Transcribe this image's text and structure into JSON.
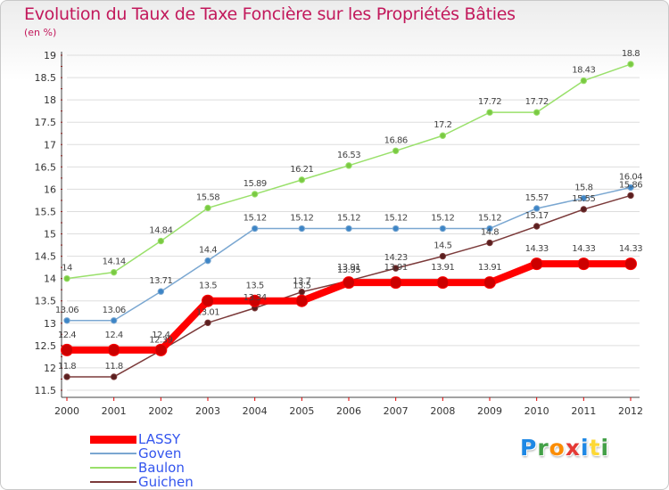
{
  "header": {
    "title": "Evolution du Taux de Taxe Foncière sur les Propriétés Bâties",
    "unit": "(en %)"
  },
  "colors": {
    "title": "#c2185b",
    "axis": "#444444",
    "grid": "#dddddd",
    "tick_marks": "#e00000"
  },
  "logo": {
    "text": "Proxiti",
    "letter_colors": [
      "#1e88e5",
      "#43a047",
      "#fb8c00",
      "#e53935",
      "#1e88e5",
      "#fdd835",
      "#43a047"
    ]
  },
  "chart_data": {
    "type": "line",
    "x": [
      "2000",
      "2001",
      "2002",
      "2003",
      "2004",
      "2005",
      "2006",
      "2007",
      "2008",
      "2009",
      "2010",
      "2011",
      "2012"
    ],
    "ylim": [
      11.5,
      19
    ],
    "yticks": [
      "11.5",
      "12",
      "12.5",
      "13",
      "13.5",
      "14",
      "14.5",
      "15",
      "15.5",
      "16",
      "16.5",
      "17",
      "17.5",
      "18",
      "18.5",
      "19"
    ],
    "grid": "horizontal",
    "legend": "bottom-left",
    "series": [
      {
        "name": "LASSY",
        "color": "#ff0000",
        "marker": "#cc0000",
        "width": 8,
        "radius": 6.5,
        "legend_text": "#3355ee",
        "values": [
          12.4,
          12.4,
          12.4,
          13.5,
          13.5,
          13.5,
          13.91,
          13.91,
          13.91,
          13.91,
          14.33,
          14.33,
          14.33
        ],
        "labels": [
          "12.4",
          "12.4",
          "12.4",
          "13.5",
          "13.5",
          "13.5",
          "13.91",
          "13.91",
          "13.91",
          "13.91",
          "14.33",
          "14.33",
          "14.33"
        ]
      },
      {
        "name": "Goven",
        "color": "#7aa7d1",
        "marker": "#3d85c6",
        "width": 1.5,
        "radius": 3.2,
        "legend_text": "#3355ee",
        "values": [
          13.06,
          13.06,
          13.71,
          14.4,
          15.12,
          15.12,
          15.12,
          15.12,
          15.12,
          15.12,
          15.57,
          15.8,
          16.04
        ],
        "labels": [
          "13.06",
          "13.06",
          "13.71",
          "14.4",
          "15.12",
          "15.12",
          "15.12",
          "15.12",
          "15.12",
          "15.12",
          "15.57",
          "15.8",
          "16.04"
        ]
      },
      {
        "name": "Baulon",
        "color": "#99e06a",
        "marker": "#7ac943",
        "width": 1.5,
        "radius": 3.2,
        "legend_text": "#3355ee",
        "values": [
          14,
          14.14,
          14.84,
          15.58,
          15.89,
          16.21,
          16.53,
          16.86,
          17.2,
          17.72,
          17.72,
          18.43,
          18.8
        ],
        "labels": [
          "14",
          "14.14",
          "14.84",
          "15.58",
          "15.89",
          "16.21",
          "16.53",
          "16.86",
          "17.2",
          "17.72",
          "17.72",
          "18.43",
          "18.8"
        ]
      },
      {
        "name": "Guichen",
        "color": "#7b3a3a",
        "marker": "#5a1f1f",
        "width": 1.5,
        "radius": 3.2,
        "legend_text": "#3355ee",
        "values": [
          11.8,
          11.8,
          12.39,
          13.01,
          13.34,
          13.7,
          13.95,
          14.23,
          14.5,
          14.8,
          15.17,
          15.55,
          15.86
        ],
        "labels": [
          "11.8",
          "11.8",
          "12.39",
          "13.01",
          "13.34",
          "13.7",
          "13.95",
          "14.23",
          "14.5",
          "14.8",
          "15.17",
          "15.55",
          "15.86"
        ]
      }
    ]
  }
}
